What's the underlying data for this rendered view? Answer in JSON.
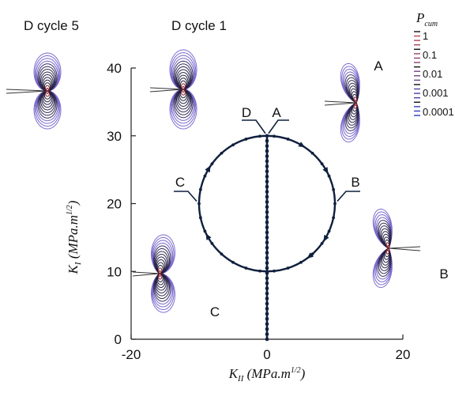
{
  "chart_data": {
    "type": "line",
    "xlabel": {
      "main": "K",
      "sub": "II",
      "unit_a": " (MPa.m",
      "sup": "1/2",
      "unit_b": ")"
    },
    "ylabel": {
      "main": "K",
      "sub": "I",
      "unit_a": " (MPa.m",
      "sup": "1/2",
      "unit_b": ")"
    },
    "xlim": [
      -20,
      20
    ],
    "ylim": [
      0,
      40
    ],
    "x_ticks": [
      "-20",
      "0",
      "20"
    ],
    "y_ticks": [
      "0",
      "10",
      "20",
      "30",
      "40"
    ],
    "grid": false,
    "series": [
      {
        "label": "circular loading path",
        "center": [
          0,
          20
        ],
        "radius": 10,
        "color": "#0f1f3d"
      },
      {
        "label": "mode I path",
        "x": [
          0,
          0
        ],
        "y": [
          0,
          30
        ],
        "color": "#0f1f3d"
      }
    ],
    "path_labels": [
      {
        "text": "A",
        "at": [
          0,
          30
        ]
      },
      {
        "text": "B",
        "at": [
          10,
          20
        ]
      },
      {
        "text": "C",
        "at": [
          -10,
          20
        ]
      },
      {
        "text": "D",
        "at": [
          0,
          30
        ]
      }
    ],
    "inset_labels": [
      "D cycle 5",
      "D cycle 1",
      "A",
      "B",
      "C"
    ],
    "legend": {
      "title_main": "P",
      "title_sub": "cum",
      "entries": [
        "1",
        "0.1",
        "0.01",
        "0.001",
        "0.0001"
      ],
      "placement": "top-right"
    }
  }
}
